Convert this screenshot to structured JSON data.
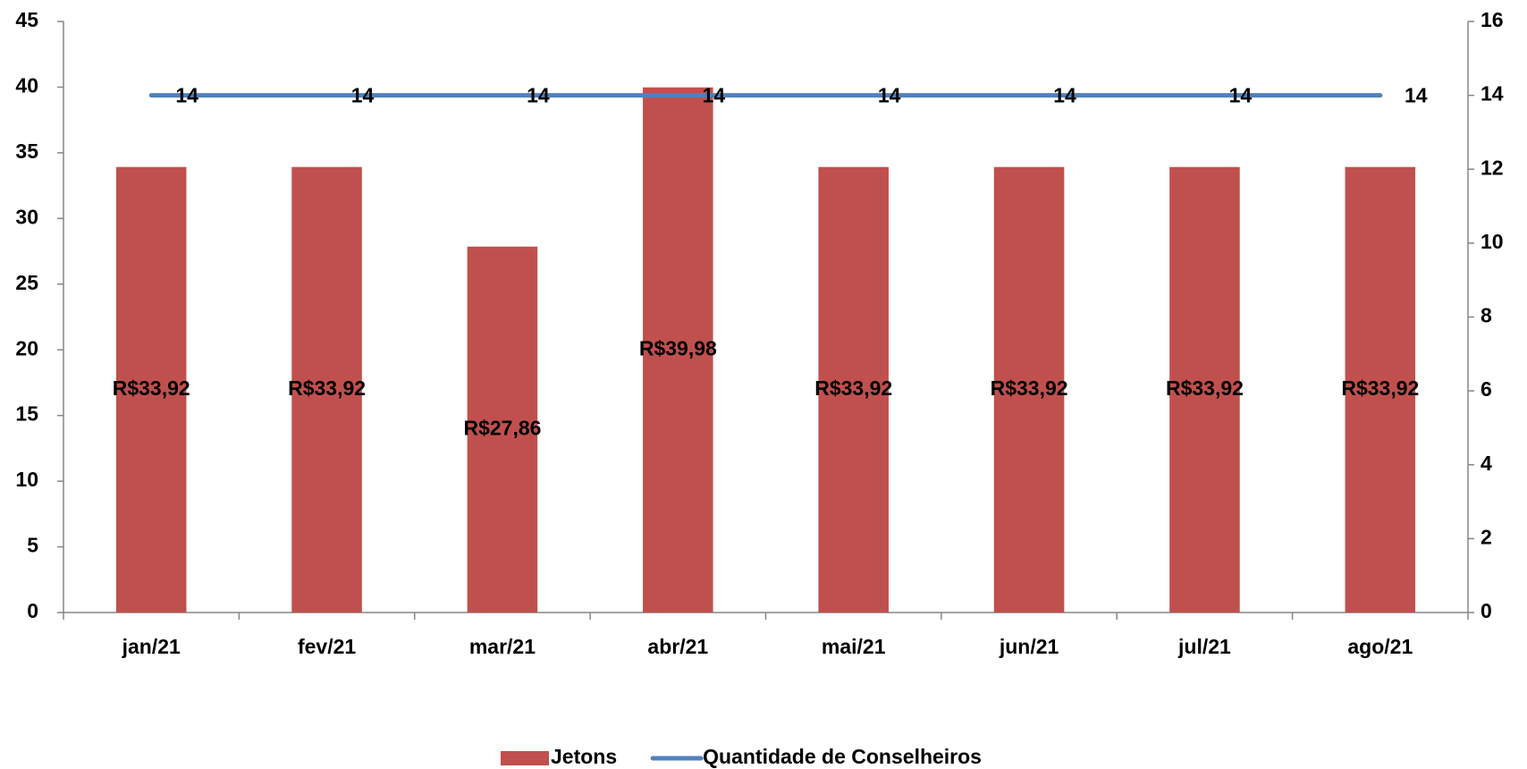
{
  "chart_data": {
    "type": "bar",
    "categories": [
      "jan/21",
      "fev/21",
      "mar/21",
      "abr/21",
      "mai/21",
      "jun/21",
      "jul/21",
      "ago/21"
    ],
    "series": [
      {
        "name": "Jetons",
        "type": "bar",
        "color": "#c0504d",
        "values": [
          33.92,
          33.92,
          27.86,
          39.98,
          33.92,
          33.92,
          33.92,
          33.92
        ],
        "value_labels": [
          "R$33,92",
          "R$33,92",
          "R$27,86",
          "R$39,98",
          "R$33,92",
          "R$33,92",
          "R$33,92",
          "R$33,92"
        ]
      },
      {
        "name": "Quantidade de Conselheiros",
        "type": "line",
        "axis": "y2",
        "color": "#4f81bd",
        "values": [
          14,
          14,
          14,
          14,
          14,
          14,
          14,
          14
        ]
      }
    ],
    "ylim": [
      0,
      45
    ],
    "yticks": [
      0,
      5,
      10,
      15,
      20,
      25,
      30,
      35,
      40,
      45
    ],
    "y2lim": [
      0,
      16
    ],
    "y2ticks": [
      0,
      2,
      4,
      6,
      8,
      10,
      12,
      14,
      16
    ],
    "legend": "bottom"
  }
}
